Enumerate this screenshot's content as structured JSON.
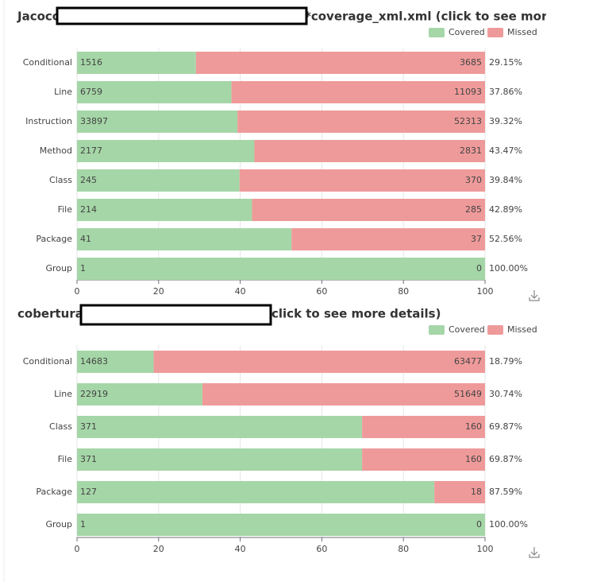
{
  "chart_data": [
    {
      "type": "bar",
      "orientation": "horizontal",
      "stacked": "percent",
      "title_prefix": "Jacoco",
      "title_suffix": "*coverage_xml.xml (click to see more de",
      "categories": [
        "Conditional",
        "Line",
        "Instruction",
        "Method",
        "Class",
        "File",
        "Package",
        "Group"
      ],
      "series": [
        {
          "name": "Covered",
          "color": "#a5d6a7",
          "values": [
            1516,
            6759,
            33897,
            2177,
            245,
            214,
            41,
            1
          ]
        },
        {
          "name": "Missed",
          "color": "#ef9a9a",
          "values": [
            3685,
            11093,
            52313,
            2831,
            370,
            285,
            37,
            0
          ]
        }
      ],
      "percentages": [
        29.15,
        37.86,
        39.32,
        43.47,
        39.84,
        42.89,
        52.56,
        100.0
      ],
      "percentage_labels": [
        "29.15%",
        "37.86%",
        "39.32%",
        "43.47%",
        "39.84%",
        "42.89%",
        "52.56%",
        "100.00%"
      ],
      "xlim": [
        0,
        100
      ],
      "xticks": [
        0,
        20,
        40,
        60,
        80,
        100
      ],
      "grid": true,
      "legend": "top-right"
    },
    {
      "type": "bar",
      "orientation": "horizontal",
      "stacked": "percent",
      "title_prefix": "cobertura:",
      "title_suffix": "click to see more details)",
      "categories": [
        "Conditional",
        "Line",
        "Class",
        "File",
        "Package",
        "Group"
      ],
      "series": [
        {
          "name": "Covered",
          "color": "#a5d6a7",
          "values": [
            14683,
            22919,
            371,
            371,
            127,
            1
          ]
        },
        {
          "name": "Missed",
          "color": "#ef9a9a",
          "values": [
            63477,
            51649,
            160,
            160,
            18,
            0
          ]
        }
      ],
      "percentages": [
        18.79,
        30.74,
        69.87,
        69.87,
        87.59,
        100.0
      ],
      "percentage_labels": [
        "18.79%",
        "30.74%",
        "69.87%",
        "69.87%",
        "87.59%",
        "100.00%"
      ],
      "xlim": [
        0,
        100
      ],
      "xticks": [
        0,
        20,
        40,
        60,
        80,
        100
      ],
      "grid": true,
      "legend": "top-right"
    }
  ]
}
